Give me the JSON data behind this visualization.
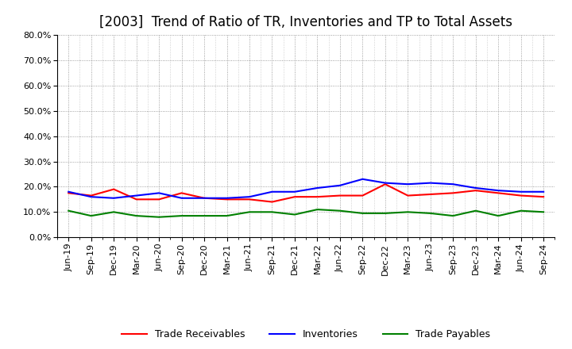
{
  "title": "[2003]  Trend of Ratio of TR, Inventories and TP to Total Assets",
  "x_labels": [
    "Jun-19",
    "Sep-19",
    "Dec-19",
    "Mar-20",
    "Jun-20",
    "Sep-20",
    "Dec-20",
    "Mar-21",
    "Jun-21",
    "Sep-21",
    "Dec-21",
    "Mar-22",
    "Jun-22",
    "Sep-22",
    "Dec-22",
    "Mar-23",
    "Jun-23",
    "Sep-23",
    "Dec-23",
    "Mar-24",
    "Jun-24",
    "Sep-24"
  ],
  "trade_receivables": [
    17.5,
    16.5,
    19.0,
    15.0,
    15.0,
    17.5,
    15.5,
    15.0,
    15.0,
    14.0,
    16.0,
    16.0,
    16.5,
    16.5,
    21.0,
    16.5,
    17.0,
    17.5,
    18.5,
    17.5,
    16.5,
    16.0
  ],
  "inventories": [
    18.0,
    16.0,
    15.5,
    16.5,
    17.5,
    15.5,
    15.5,
    15.5,
    16.0,
    18.0,
    18.0,
    19.5,
    20.5,
    23.0,
    21.5,
    21.0,
    21.5,
    21.0,
    19.5,
    18.5,
    18.0,
    18.0
  ],
  "trade_payables": [
    10.5,
    8.5,
    10.0,
    8.5,
    8.0,
    8.5,
    8.5,
    8.5,
    10.0,
    10.0,
    9.0,
    11.0,
    10.5,
    9.5,
    9.5,
    10.0,
    9.5,
    8.5,
    10.5,
    8.5,
    10.5,
    10.0
  ],
  "ylim": [
    0.0,
    80.0
  ],
  "yticks": [
    0.0,
    10.0,
    20.0,
    30.0,
    40.0,
    50.0,
    60.0,
    70.0,
    80.0
  ],
  "color_tr": "#ff0000",
  "color_inv": "#0000ff",
  "color_tp": "#008000",
  "bg_color": "#ffffff",
  "plot_bg_color": "#ffffff",
  "legend_tr": "Trade Receivables",
  "legend_inv": "Inventories",
  "legend_tp": "Trade Payables",
  "title_fontsize": 12,
  "axis_fontsize": 8,
  "legend_fontsize": 9,
  "line_width": 1.5
}
